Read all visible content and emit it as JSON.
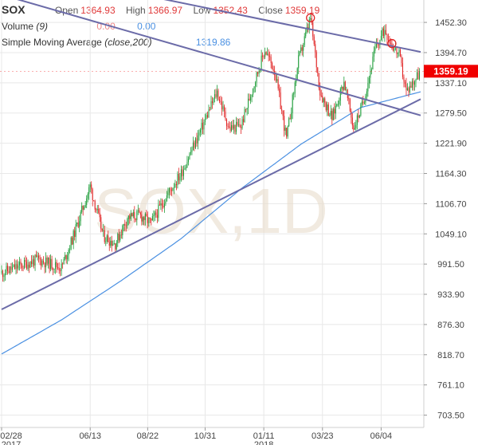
{
  "header": {
    "symbol": "SOX",
    "open_label": "Open",
    "open": "1364.93",
    "high_label": "High",
    "high": "1366.97",
    "low_label": "Low",
    "low": "1352.43",
    "close_label": "Close",
    "close": "1359.19",
    "volume_label": "Volume",
    "volume_param": "(9)",
    "volume_value": "0.00",
    "volume_value2": "0.00",
    "sma_label": "Simple Moving Average",
    "sma_param": "(close,200)",
    "sma_value": "1319.86"
  },
  "watermark": "SOX,1D",
  "colors": {
    "up": "#1f9d3a",
    "down": "#e02424",
    "sma": "#4a90e2",
    "trendline": "#6b6ba8",
    "price_tag": "#f00000",
    "grid": "#e8e8e8"
  },
  "chart_data": {
    "type": "candlestick",
    "title": "SOX",
    "interval": "1D",
    "ylim": [
      680,
      1495
    ],
    "x_ticks": [
      {
        "label": "02/28",
        "sub": "2017",
        "index": 0
      },
      {
        "label": "06/13",
        "index": 74
      },
      {
        "label": "08/22",
        "index": 122
      },
      {
        "label": "10/31",
        "index": 170
      },
      {
        "label": "01/11",
        "sub": "2018",
        "index": 219
      },
      {
        "label": "03/23",
        "index": 268
      },
      {
        "label": "06/04",
        "index": 317
      }
    ],
    "y_ticks": [
      703.5,
      761.1,
      818.7,
      876.3,
      933.9,
      991.5,
      1049.1,
      1106.7,
      1164.3,
      1221.9,
      1279.5,
      1337.1,
      1394.7,
      1452.3
    ],
    "last_price": 1359.19,
    "bars": 350,
    "key_points": [
      [
        0,
        975
      ],
      [
        30,
        1000
      ],
      [
        50,
        985
      ],
      [
        60,
        1045
      ],
      [
        74,
        1140
      ],
      [
        85,
        1045
      ],
      [
        95,
        1030
      ],
      [
        105,
        1080
      ],
      [
        115,
        1085
      ],
      [
        125,
        1070
      ],
      [
        140,
        1130
      ],
      [
        150,
        1165
      ],
      [
        165,
        1240
      ],
      [
        180,
        1320
      ],
      [
        190,
        1250
      ],
      [
        200,
        1255
      ],
      [
        210,
        1330
      ],
      [
        220,
        1400
      ],
      [
        228,
        1360
      ],
      [
        238,
        1230
      ],
      [
        248,
        1380
      ],
      [
        258,
        1460
      ],
      [
        266,
        1320
      ],
      [
        276,
        1270
      ],
      [
        286,
        1340
      ],
      [
        294,
        1250
      ],
      [
        302,
        1300
      ],
      [
        312,
        1400
      ],
      [
        320,
        1440
      ],
      [
        326,
        1410
      ],
      [
        332,
        1390
      ],
      [
        338,
        1320
      ],
      [
        344,
        1340
      ],
      [
        350,
        1359.19
      ]
    ],
    "sma_200": [
      [
        0,
        820
      ],
      [
        50,
        885
      ],
      [
        100,
        960
      ],
      [
        150,
        1040
      ],
      [
        200,
        1135
      ],
      [
        250,
        1220
      ],
      [
        300,
        1290
      ],
      [
        350,
        1320
      ]
    ],
    "trendlines": [
      {
        "from": [
          0,
          905
        ],
        "to": [
          350,
          1306
        ]
      },
      {
        "from": [
          0,
          1505
        ],
        "to": [
          350,
          1275
        ]
      },
      {
        "from": [
          0,
          1560
        ],
        "to": [
          350,
          1396
        ]
      }
    ],
    "markers": [
      [
        258,
        1461
      ],
      [
        326,
        1412
      ]
    ]
  }
}
